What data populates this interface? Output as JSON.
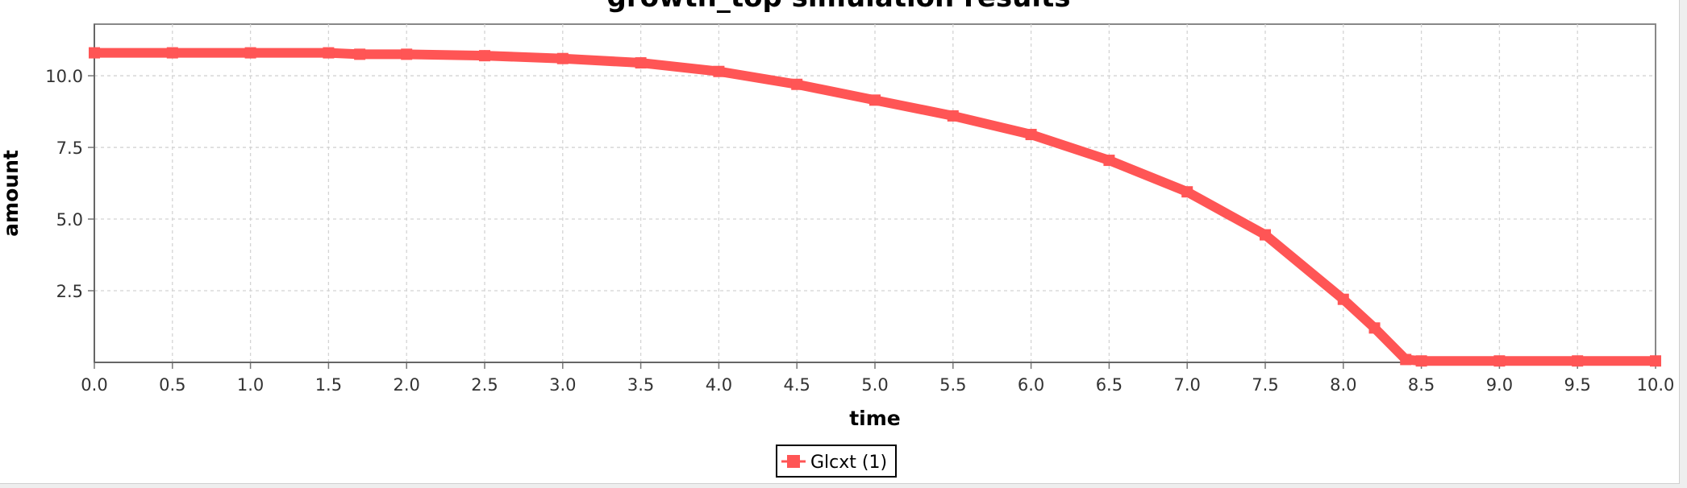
{
  "chart_data": {
    "type": "line",
    "title": "growth_top simulation results",
    "xlabel": "time",
    "ylabel": "amount",
    "xlim": [
      0,
      10
    ],
    "ylim": [
      0,
      11.8
    ],
    "xticks": [
      "0.0",
      "0.5",
      "1.0",
      "1.5",
      "2.0",
      "2.5",
      "3.0",
      "3.5",
      "4.0",
      "4.5",
      "5.0",
      "5.5",
      "6.0",
      "6.5",
      "7.0",
      "7.5",
      "8.0",
      "8.5",
      "9.0",
      "9.5",
      "10.0"
    ],
    "yticks": [
      "2.5",
      "5.0",
      "7.5",
      "10.0"
    ],
    "grid": true,
    "legend_position": "bottom-center",
    "series": [
      {
        "name": "Glcxt (1)",
        "color": "#ff5555",
        "x": [
          0,
          0.5,
          1.0,
          1.5,
          1.7,
          2.0,
          2.5,
          3.0,
          3.5,
          4.0,
          4.5,
          5.0,
          5.5,
          6.0,
          6.5,
          7.0,
          7.5,
          8.0,
          8.2,
          8.4,
          8.5,
          9.0,
          9.5,
          10.0
        ],
        "y": [
          10.8,
          10.8,
          10.8,
          10.8,
          10.75,
          10.75,
          10.7,
          10.6,
          10.45,
          10.15,
          9.7,
          9.15,
          8.6,
          7.95,
          7.05,
          5.95,
          4.45,
          2.2,
          1.2,
          0.1,
          0.05,
          0.05,
          0.05,
          0.05
        ]
      }
    ]
  }
}
